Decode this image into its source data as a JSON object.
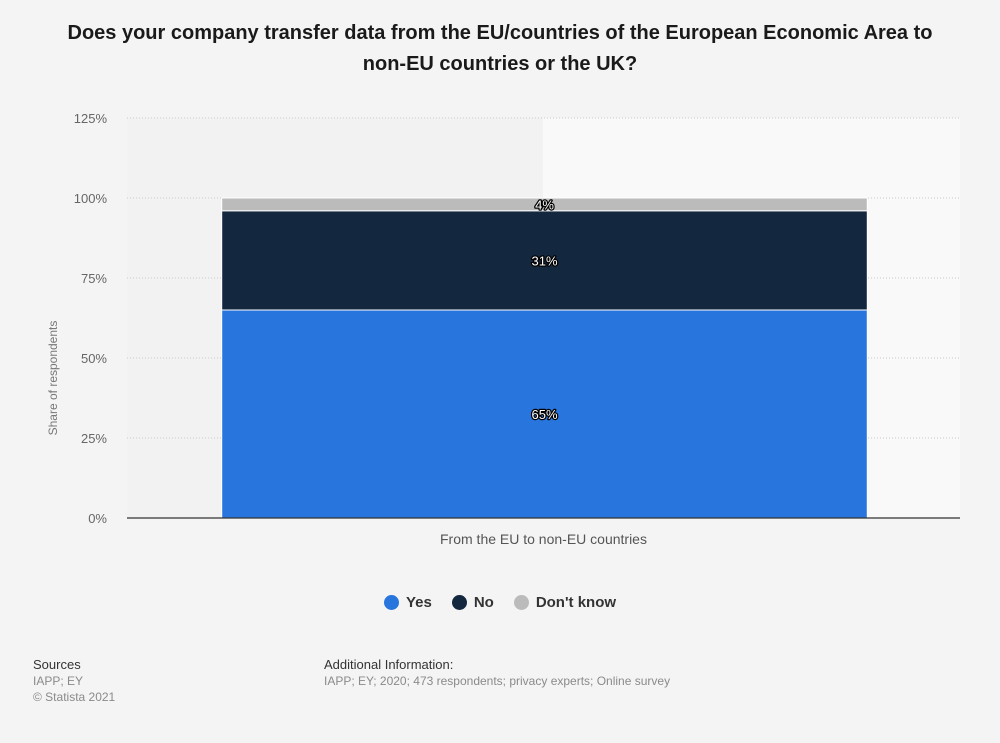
{
  "title": "Does your company transfer data from the EU/countries of the European Economic Area to non-EU countries or the UK?",
  "chart_data": {
    "type": "bar",
    "stacked": true,
    "categories": [
      "From the EU to non-EU countries"
    ],
    "series": [
      {
        "name": "Yes",
        "values": [
          65
        ],
        "color": "#2876dd"
      },
      {
        "name": "No",
        "values": [
          31
        ],
        "color": "#13273e"
      },
      {
        "name": "Don't know",
        "values": [
          4
        ],
        "color": "#bbbbbb"
      }
    ],
    "data_labels": [
      "65%",
      "31%",
      "4%"
    ],
    "ylabel": "Share of respondents",
    "xlabel": "",
    "ylim": [
      0,
      125
    ],
    "yticks": [
      0,
      25,
      50,
      75,
      100,
      125
    ],
    "ytick_labels": [
      "0%",
      "25%",
      "50%",
      "75%",
      "100%",
      "125%"
    ],
    "grid": true,
    "legend_position": "bottom-center"
  },
  "legend": [
    {
      "label": "Yes",
      "color": "#2876dd"
    },
    {
      "label": "No",
      "color": "#13273e"
    },
    {
      "label": "Don't know",
      "color": "#bbbbbb"
    }
  ],
  "footer": {
    "sources_heading": "Sources",
    "sources_line1": "IAPP; EY",
    "copyright": "© Statista 2021",
    "additional_heading": "Additional Information:",
    "additional_text": "IAPP; EY; 2020; 473 respondents; privacy experts; Online survey"
  }
}
